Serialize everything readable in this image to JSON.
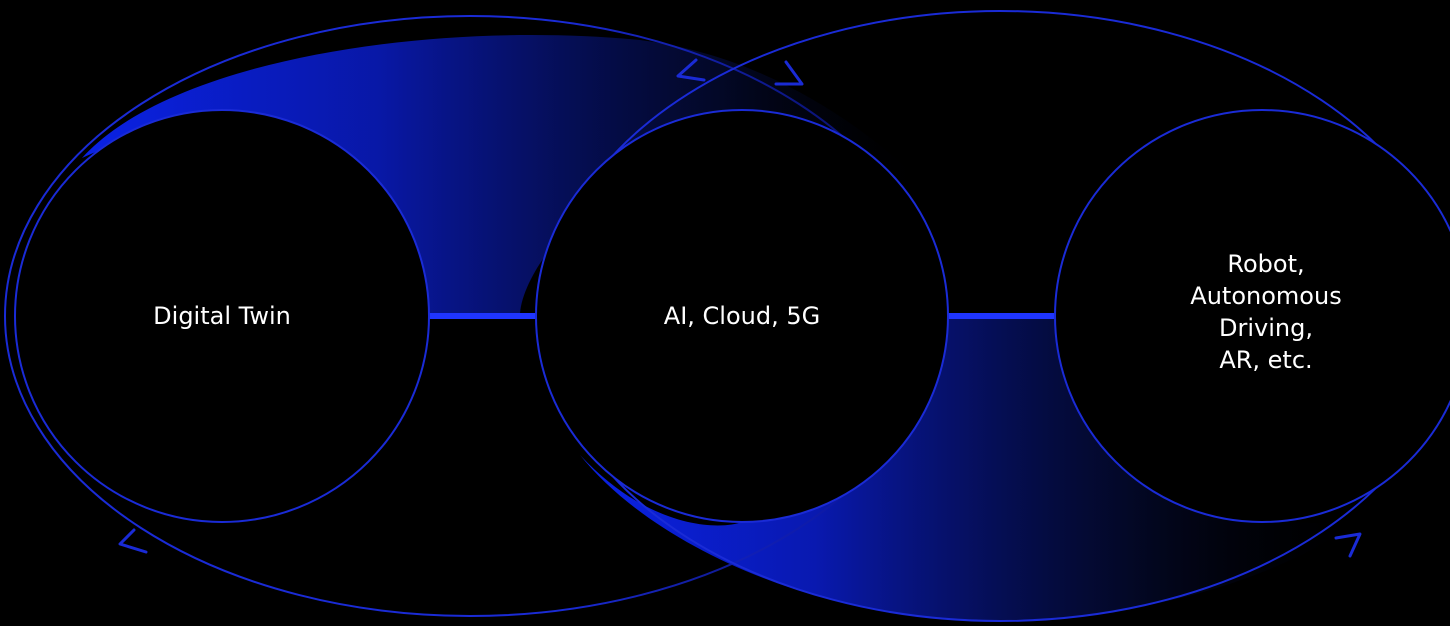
{
  "nodes": [
    {
      "id": "digital-twin",
      "label": "Digital Twin"
    },
    {
      "id": "ai-cloud-5g",
      "label": "AI, Cloud, 5G"
    },
    {
      "id": "robot",
      "label": "Robot,\nAutonomous Driving,\nAR, etc."
    }
  ],
  "colors": {
    "background": "#000000",
    "node_fill": "#000000",
    "node_stroke": "#1a2bd6",
    "connector": "#1f35ff",
    "loop_stroke": "#1a2bd6",
    "glow_start": "#0a22e6",
    "glow_end": "#000000",
    "text": "#ffffff"
  },
  "icons": [
    "double-arrow-icon",
    "arrowhead-left-icon",
    "arrowhead-right-icon"
  ]
}
